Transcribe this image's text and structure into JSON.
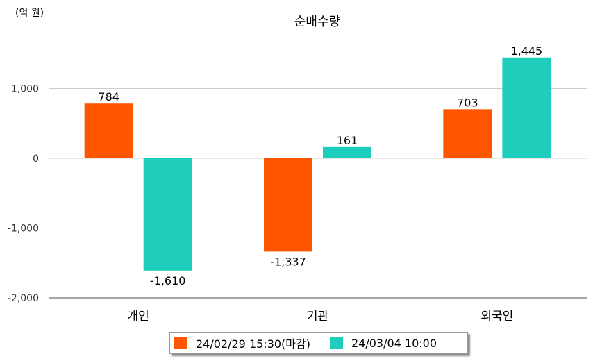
{
  "chart_data": {
    "type": "bar",
    "title": "순매수량",
    "unit_label": "(억 원)",
    "categories": [
      "개인",
      "기관",
      "외국인"
    ],
    "series": [
      {
        "name": "24/02/29 15:30(마감)",
        "color": "#ff5500",
        "values": [
          784,
          -1337,
          703
        ],
        "labels": [
          "784",
          "-1,337",
          "703"
        ]
      },
      {
        "name": "24/03/04 10:00",
        "color": "#1ecdbb",
        "values": [
          -1610,
          161,
          1445
        ],
        "labels": [
          "-1,610",
          "161",
          "1,445"
        ]
      }
    ],
    "ylim": [
      -2000,
      1700
    ],
    "yticks": [
      1000,
      0,
      -1000,
      -2000
    ],
    "ytick_labels": [
      "1,000",
      "0",
      "-1,000",
      "-2,000"
    ],
    "grid": true,
    "legend_position": "bottom"
  }
}
